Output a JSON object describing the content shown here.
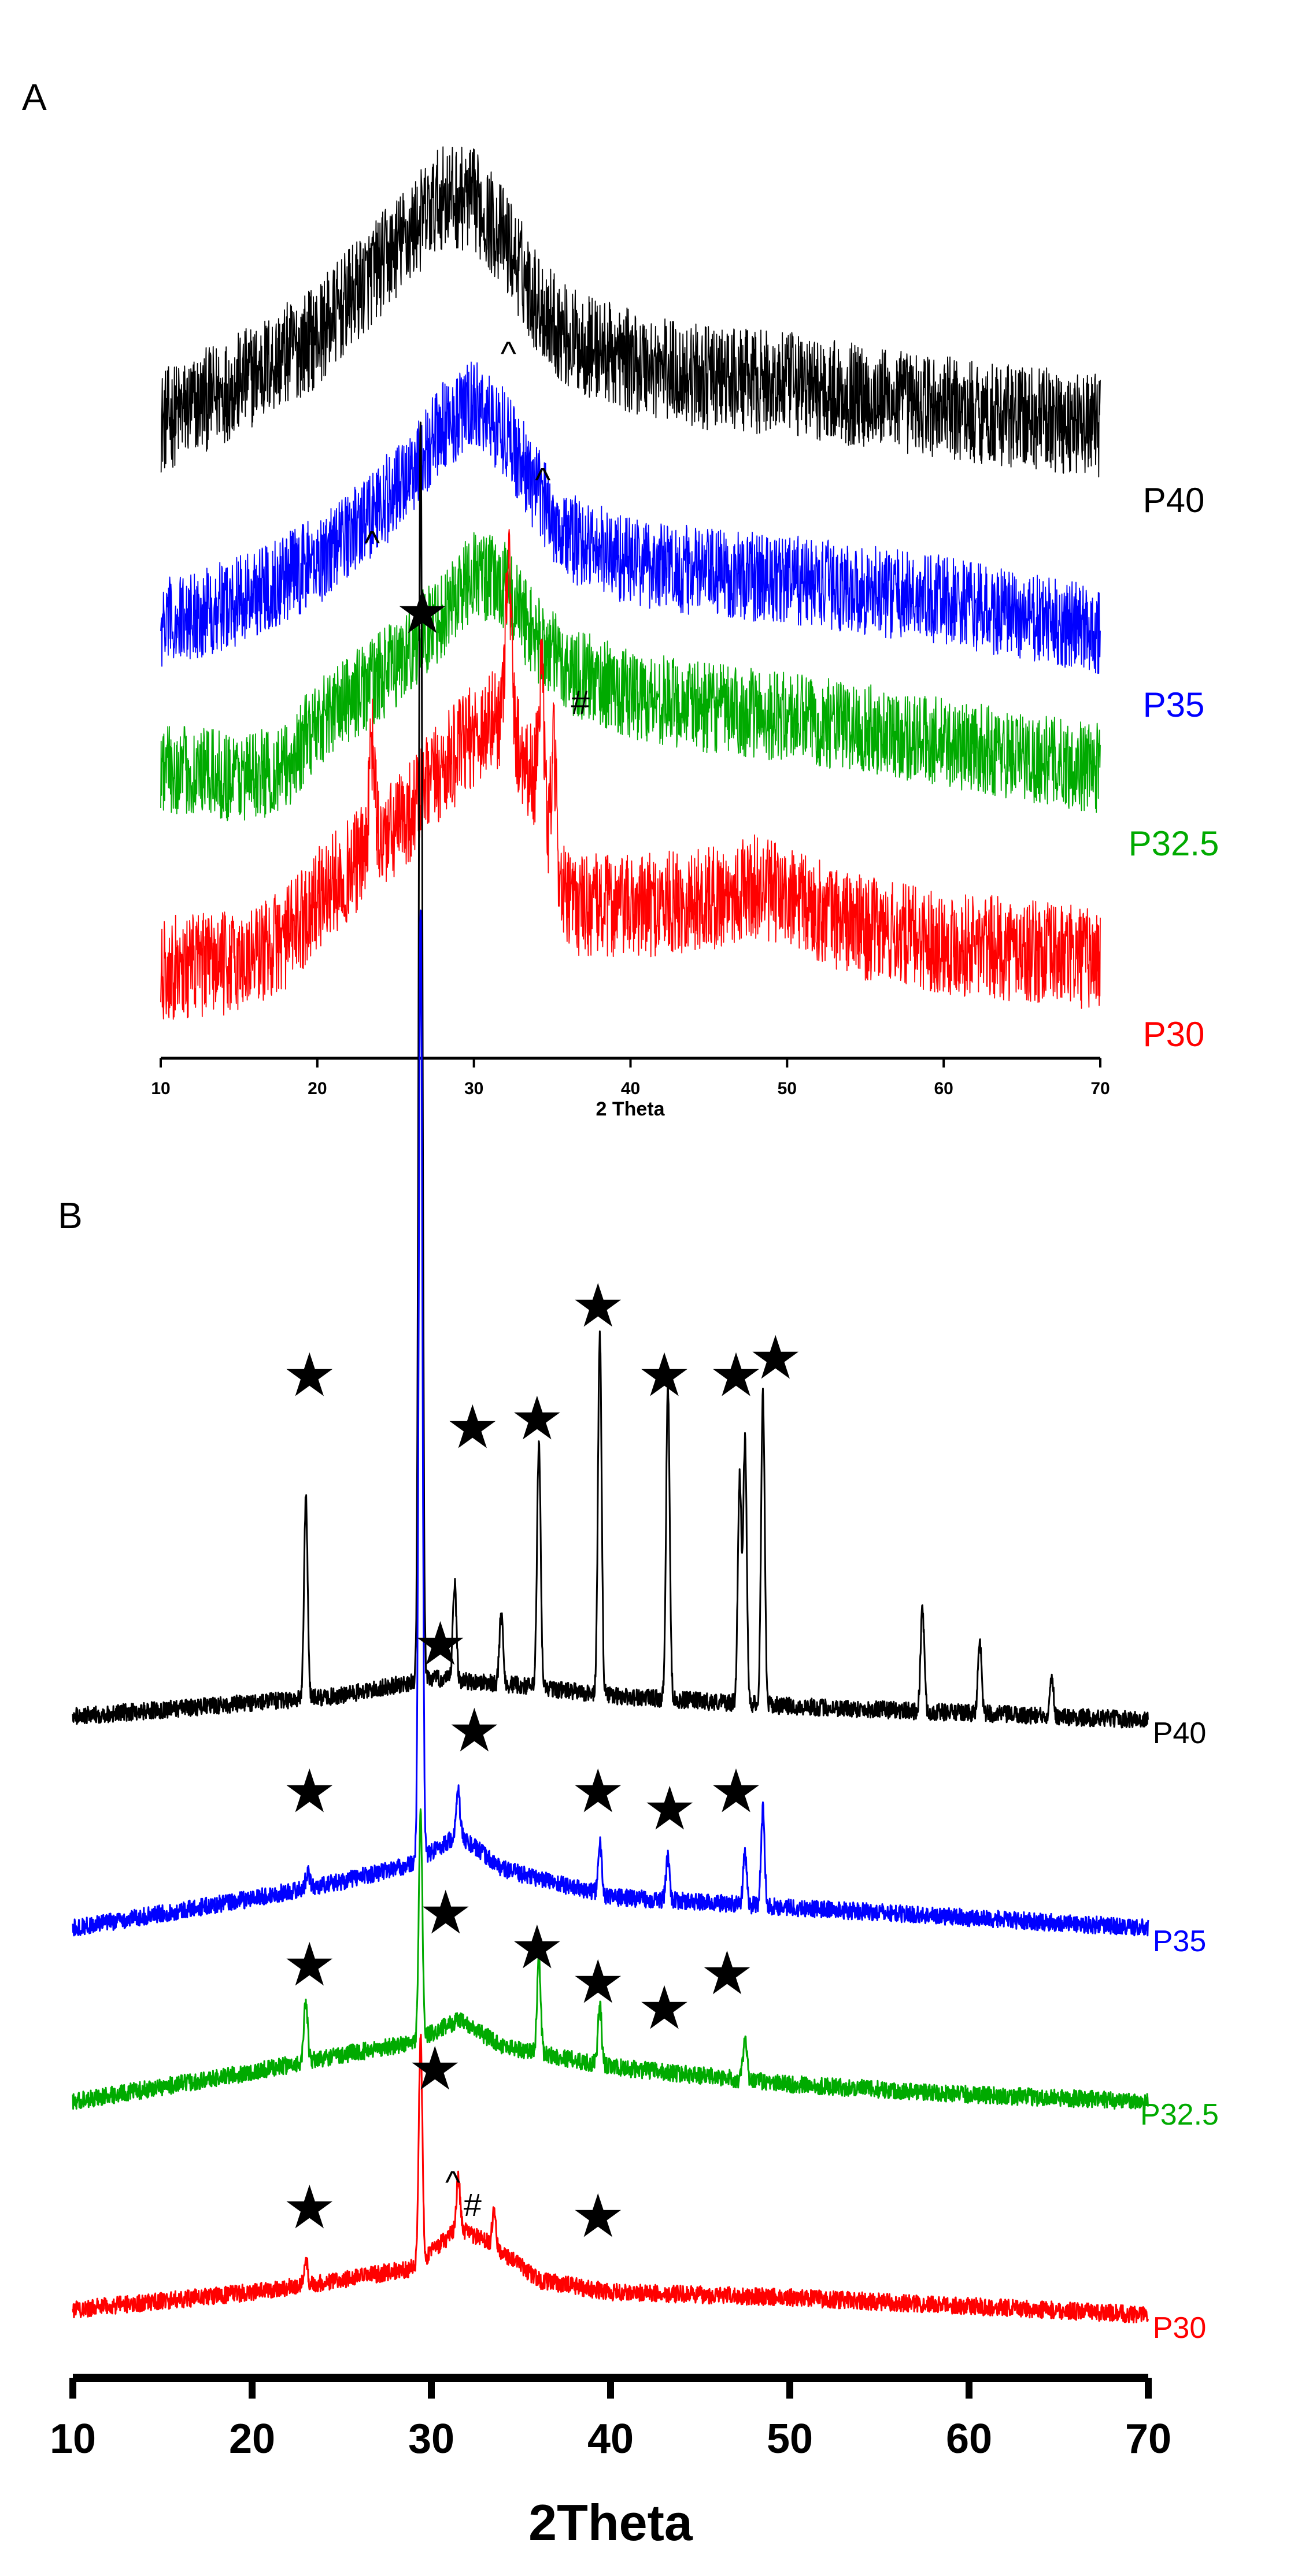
{
  "chart_data": [
    {
      "type": "line",
      "panel_label": "A",
      "title": "",
      "xlabel": "2 Theta",
      "ylabel": "",
      "xlim": [
        10,
        70
      ],
      "xticks": [
        10,
        20,
        30,
        40,
        50,
        60,
        70
      ],
      "grid": false,
      "legend": "right-side labels next to each trace",
      "series": [
        {
          "name": "P40",
          "color": "#000000",
          "offset": 3.0,
          "noise": 0.3,
          "profile": [
            [
              10,
              0.3
            ],
            [
              15,
              0.52
            ],
            [
              20,
              0.8
            ],
            [
              25,
              1.3
            ],
            [
              28,
              1.6
            ],
            [
              30,
              1.58
            ],
            [
              32,
              1.35
            ],
            [
              34,
              1.0
            ],
            [
              36,
              0.78
            ],
            [
              40,
              0.65
            ],
            [
              45,
              0.55
            ],
            [
              50,
              0.52
            ],
            [
              55,
              0.45
            ],
            [
              60,
              0.38
            ],
            [
              65,
              0.33
            ],
            [
              70,
              0.28
            ]
          ]
        },
        {
          "name": "P35",
          "color": "#0000ff",
          "offset": 2.05,
          "noise": 0.26,
          "profile": [
            [
              10,
              0.08
            ],
            [
              15,
              0.22
            ],
            [
              20,
              0.45
            ],
            [
              25,
              0.85
            ],
            [
              28,
              1.22
            ],
            [
              30,
              1.35
            ],
            [
              32,
              1.2
            ],
            [
              34,
              0.85
            ],
            [
              36,
              0.58
            ],
            [
              40,
              0.45
            ],
            [
              45,
              0.38
            ],
            [
              50,
              0.34
            ],
            [
              55,
              0.28
            ],
            [
              60,
              0.22
            ],
            [
              65,
              0.12
            ],
            [
              70,
              0.05
            ]
          ]
        },
        {
          "name": "P32.5",
          "color": "#00aa00",
          "offset": 1.15,
          "noise": 0.26,
          "profile": [
            [
              10,
              0.15
            ],
            [
              15,
              0.1
            ],
            [
              18,
              0.15
            ],
            [
              20,
              0.42
            ],
            [
              25,
              0.75
            ],
            [
              28,
              1.05
            ],
            [
              30,
              1.28
            ],
            [
              32,
              1.2
            ],
            [
              34,
              0.9
            ],
            [
              36,
              0.72
            ],
            [
              40,
              0.58
            ],
            [
              45,
              0.5
            ],
            [
              50,
              0.45
            ],
            [
              55,
              0.38
            ],
            [
              60,
              0.3
            ],
            [
              65,
              0.22
            ],
            [
              70,
              0.15
            ]
          ]
        },
        {
          "name": "P30",
          "color": "#ff0000",
          "offset": 0.0,
          "noise": 0.3,
          "profile": [
            [
              10,
              0.15
            ],
            [
              15,
              0.18
            ],
            [
              18,
              0.32
            ],
            [
              20,
              0.55
            ],
            [
              23,
              0.8
            ],
            [
              25,
              0.95
            ],
            [
              28,
              1.3
            ],
            [
              30,
              1.5
            ],
            [
              32,
              1.62
            ],
            [
              34,
              1.2
            ],
            [
              35,
              0.7
            ],
            [
              36,
              0.52
            ],
            [
              40,
              0.5
            ],
            [
              45,
              0.55
            ],
            [
              48,
              0.62
            ],
            [
              52,
              0.48
            ],
            [
              55,
              0.38
            ],
            [
              60,
              0.3
            ],
            [
              65,
              0.25
            ],
            [
              70,
              0.2
            ]
          ],
          "peaks": [
            [
              23.5,
              0.6
            ],
            [
              32.2,
              0.95
            ],
            [
              34.3,
              0.8
            ],
            [
              35.1,
              0.7
            ]
          ]
        }
      ],
      "annotations": [
        {
          "text": "^",
          "x": 32.2,
          "series": "P30"
        },
        {
          "text": "^",
          "x": 23.5,
          "series": "P30"
        },
        {
          "text": "^",
          "x": 34.4,
          "series": "P30"
        },
        {
          "text": "#",
          "x": 36.8,
          "series": "P30"
        }
      ]
    },
    {
      "type": "line",
      "panel_label": "B",
      "title": "",
      "xlabel": "2Theta",
      "ylabel": "",
      "xlim": [
        10,
        70
      ],
      "xticks": [
        10,
        20,
        30,
        40,
        50,
        60,
        70
      ],
      "grid": false,
      "legend": "right-side labels next to each trace",
      "series": [
        {
          "name": "P40",
          "color": "#000000",
          "offset": 3.4,
          "noise": 0.05,
          "profile": [
            [
              10,
              0.1
            ],
            [
              20,
              0.18
            ],
            [
              25,
              0.22
            ],
            [
              30,
              0.32
            ],
            [
              35,
              0.28
            ],
            [
              40,
              0.22
            ],
            [
              50,
              0.16
            ],
            [
              60,
              0.12
            ],
            [
              70,
              0.08
            ]
          ],
          "peaks": [
            [
              23.0,
              1.15
            ],
            [
              29.4,
              7.3
            ],
            [
              31.3,
              0.55
            ],
            [
              33.9,
              0.4
            ],
            [
              36.0,
              1.4
            ],
            [
              39.4,
              2.1
            ],
            [
              43.2,
              1.8
            ],
            [
              47.2,
              1.3
            ],
            [
              47.5,
              1.5
            ],
            [
              48.5,
              1.8
            ],
            [
              57.4,
              0.6
            ],
            [
              60.6,
              0.4
            ],
            [
              64.6,
              0.25
            ]
          ]
        },
        {
          "name": "P35",
          "color": "#0000ff",
          "offset": 2.2,
          "noise": 0.05,
          "profile": [
            [
              10,
              0.08
            ],
            [
              20,
              0.25
            ],
            [
              25,
              0.35
            ],
            [
              29,
              0.45
            ],
            [
              31.5,
              0.62
            ],
            [
              34,
              0.42
            ],
            [
              40,
              0.26
            ],
            [
              50,
              0.2
            ],
            [
              60,
              0.14
            ],
            [
              70,
              0.08
            ]
          ],
          "peaks": [
            [
              23.1,
              0.1
            ],
            [
              29.4,
              5.5
            ],
            [
              31.5,
              0.25
            ],
            [
              39.4,
              0.3
            ],
            [
              43.2,
              0.25
            ],
            [
              47.5,
              0.3
            ],
            [
              48.5,
              0.55
            ]
          ]
        },
        {
          "name": "P32.5",
          "color": "#00aa00",
          "offset": 1.2,
          "noise": 0.05,
          "profile": [
            [
              10,
              0.08
            ],
            [
              20,
              0.25
            ],
            [
              25,
              0.35
            ],
            [
              29,
              0.42
            ],
            [
              31.5,
              0.55
            ],
            [
              34,
              0.4
            ],
            [
              40,
              0.28
            ],
            [
              50,
              0.18
            ],
            [
              60,
              0.12
            ],
            [
              70,
              0.08
            ]
          ],
          "peaks": [
            [
              23.0,
              0.35
            ],
            [
              29.4,
              1.3
            ],
            [
              36.0,
              0.55
            ],
            [
              39.4,
              0.35
            ],
            [
              47.5,
              0.25
            ]
          ]
        },
        {
          "name": "P30",
          "color": "#ff0000",
          "offset": 0.0,
          "noise": 0.05,
          "profile": [
            [
              10,
              0.08
            ],
            [
              20,
              0.18
            ],
            [
              25,
              0.25
            ],
            [
              29,
              0.32
            ],
            [
              31.5,
              0.55
            ],
            [
              33.5,
              0.45
            ],
            [
              36,
              0.25
            ],
            [
              40,
              0.18
            ],
            [
              50,
              0.15
            ],
            [
              60,
              0.1
            ],
            [
              70,
              0.05
            ]
          ],
          "peaks": [
            [
              23.0,
              0.15
            ],
            [
              29.4,
              1.3
            ],
            [
              31.5,
              0.3
            ],
            [
              33.5,
              0.2
            ]
          ]
        }
      ],
      "annotations": [
        {
          "text": "★",
          "x": 29.5,
          "label_y": 9.75
        },
        {
          "text": "★",
          "x": 23.2,
          "label_y": 5.35
        },
        {
          "text": "★",
          "x": 32.3,
          "label_y": 5.05
        },
        {
          "text": "★",
          "x": 35.9,
          "label_y": 5.1
        },
        {
          "text": "★",
          "x": 39.3,
          "label_y": 5.75
        },
        {
          "text": "★",
          "x": 43.0,
          "label_y": 5.35
        },
        {
          "text": "★",
          "x": 47.0,
          "label_y": 5.35
        },
        {
          "text": "★",
          "x": 49.2,
          "label_y": 5.45
        },
        {
          "text": "★",
          "x": 30.5,
          "label_y": 3.8
        },
        {
          "text": "★",
          "x": 23.2,
          "label_y": 2.95
        },
        {
          "text": "★",
          "x": 32.4,
          "label_y": 3.3
        },
        {
          "text": "★",
          "x": 39.3,
          "label_y": 2.95
        },
        {
          "text": "★",
          "x": 43.3,
          "label_y": 2.85
        },
        {
          "text": "★",
          "x": 47.0,
          "label_y": 2.95
        },
        {
          "text": "★",
          "x": 30.8,
          "label_y": 2.25
        },
        {
          "text": "★",
          "x": 23.2,
          "label_y": 1.95
        },
        {
          "text": "★",
          "x": 35.9,
          "label_y": 2.05
        },
        {
          "text": "★",
          "x": 39.3,
          "label_y": 1.85
        },
        {
          "text": "★",
          "x": 43.0,
          "label_y": 1.7
        },
        {
          "text": "★",
          "x": 46.5,
          "label_y": 1.9
        },
        {
          "text": "★",
          "x": 30.2,
          "label_y": 1.35
        },
        {
          "text": "★",
          "x": 23.2,
          "label_y": 0.55
        },
        {
          "text": "★",
          "x": 39.3,
          "label_y": 0.5
        },
        {
          "text": "^",
          "x": 31.2,
          "label_y": 0.75
        },
        {
          "text": "#",
          "x": 32.3,
          "label_y": 0.62
        }
      ]
    }
  ]
}
